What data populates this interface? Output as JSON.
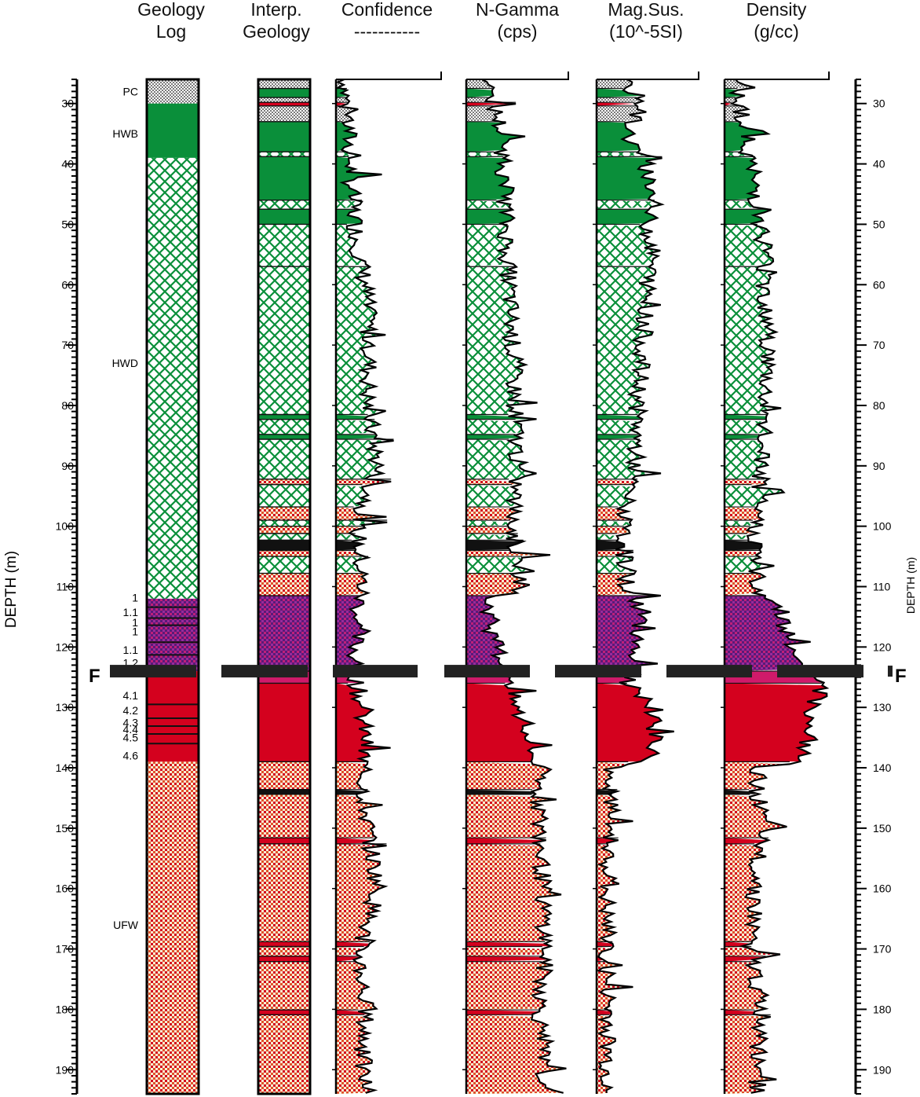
{
  "colors": {
    "green": "#0a8f3a",
    "red": "#d4011e",
    "magenta": "#d01a6a",
    "purple": "#7a1f86",
    "black": "#111111",
    "gray_dither": "#bdbdbd",
    "cream": "#f3e9c9"
  },
  "chart_data": {
    "type": "well-log",
    "ylabel": "DEPTH (m)",
    "ylim": [
      26,
      194
    ],
    "yticks": [
      30,
      40,
      50,
      60,
      70,
      80,
      90,
      100,
      110,
      120,
      130,
      140,
      150,
      160,
      170,
      180,
      190
    ],
    "fault_marker": {
      "label": "F",
      "depth": 124
    },
    "columns": [
      {
        "key": "geology_log",
        "title_line1": "Geology",
        "title_line2": "Log"
      },
      {
        "key": "interp_geology",
        "title_line1": "Interp.",
        "title_line2": "Geology"
      },
      {
        "key": "confidence",
        "title_line1": "Confidence",
        "title_line2": "-----------"
      },
      {
        "key": "n_gamma",
        "title_line1": "N-Gamma",
        "title_line2": "(cps)"
      },
      {
        "key": "mag_sus",
        "title_line1": "Mag.Sus.",
        "title_line2": "(10^-5SI)"
      },
      {
        "key": "density",
        "title_line1": "Density",
        "title_line2": "(g/cc)"
      }
    ],
    "geology_log": [
      {
        "top": 26,
        "bot": 30,
        "unit": "PC"
      },
      {
        "top": 30,
        "bot": 39,
        "unit": "HWB"
      },
      {
        "top": 39,
        "bot": 112,
        "unit": "HWD"
      },
      {
        "top": 112,
        "bot": 124,
        "unit": "1"
      },
      {
        "top": 124,
        "bot": 139,
        "unit": "4.1"
      },
      {
        "top": 139,
        "bot": 194,
        "unit": "UFW"
      }
    ],
    "unit_labels": [
      {
        "depth": 28,
        "text": "PC"
      },
      {
        "depth": 35,
        "text": "HWB"
      },
      {
        "depth": 73,
        "text": "HWD"
      },
      {
        "depth": 111.8,
        "text": "1"
      },
      {
        "depth": 114.2,
        "text": "1.1"
      },
      {
        "depth": 115.9,
        "text": "1"
      },
      {
        "depth": 117.4,
        "text": "1"
      },
      {
        "depth": 120.5,
        "text": "1.1"
      },
      {
        "depth": 122.6,
        "text": "1.2"
      },
      {
        "depth": 128,
        "text": "4.1"
      },
      {
        "depth": 130.5,
        "text": "4.2"
      },
      {
        "depth": 132.5,
        "text": "4.3"
      },
      {
        "depth": 133.6,
        "text": "4.4"
      },
      {
        "depth": 135,
        "text": "4.5"
      },
      {
        "depth": 138,
        "text": "4.6"
      },
      {
        "depth": 166,
        "text": "UFW"
      }
    ],
    "interp_geology": [
      {
        "top": 26,
        "bot": 27.5,
        "unit": "PC"
      },
      {
        "top": 27.5,
        "bot": 29,
        "unit": "HWB"
      },
      {
        "top": 29,
        "bot": 29.8,
        "unit": "PC"
      },
      {
        "top": 29.8,
        "bot": 30.4,
        "unit": "RED"
      },
      {
        "top": 30.4,
        "bot": 33,
        "unit": "PC"
      },
      {
        "top": 33,
        "bot": 38,
        "unit": "HWB"
      },
      {
        "top": 38,
        "bot": 38.8,
        "unit": "HWD"
      },
      {
        "top": 38.8,
        "bot": 46,
        "unit": "HWB"
      },
      {
        "top": 46,
        "bot": 47.5,
        "unit": "HWD"
      },
      {
        "top": 47.5,
        "bot": 50,
        "unit": "HWB"
      },
      {
        "top": 50,
        "bot": 57,
        "unit": "HWD"
      },
      {
        "top": 57,
        "bot": 81.5,
        "unit": "HWD"
      },
      {
        "top": 81.5,
        "bot": 82.3,
        "unit": "HWB"
      },
      {
        "top": 82.3,
        "bot": 84.8,
        "unit": "HWD"
      },
      {
        "top": 84.8,
        "bot": 85.6,
        "unit": "HWB"
      },
      {
        "top": 85.6,
        "bot": 92.2,
        "unit": "HWD"
      },
      {
        "top": 92.2,
        "bot": 93.1,
        "unit": "UFW"
      },
      {
        "top": 93.1,
        "bot": 96.8,
        "unit": "HWD"
      },
      {
        "top": 96.8,
        "bot": 99,
        "unit": "UFW"
      },
      {
        "top": 99,
        "bot": 100,
        "unit": "HWD"
      },
      {
        "top": 100,
        "bot": 101.2,
        "unit": "UFW"
      },
      {
        "top": 101.2,
        "bot": 102.3,
        "unit": "HWD"
      },
      {
        "top": 102.3,
        "bot": 104,
        "unit": "BLACK"
      },
      {
        "top": 104,
        "bot": 105,
        "unit": "UFW"
      },
      {
        "top": 105,
        "bot": 107.8,
        "unit": "HWD"
      },
      {
        "top": 107.8,
        "bot": 111.5,
        "unit": "UFW"
      },
      {
        "top": 111.5,
        "bot": 124,
        "unit": "PURPLE"
      },
      {
        "top": 124,
        "bot": 126,
        "unit": "MAG"
      },
      {
        "top": 126,
        "bot": 139,
        "unit": "RED"
      },
      {
        "top": 139,
        "bot": 143.6,
        "unit": "UFW"
      },
      {
        "top": 143.6,
        "bot": 144.4,
        "unit": "BLACK"
      },
      {
        "top": 144.4,
        "bot": 151.6,
        "unit": "UFW"
      },
      {
        "top": 151.6,
        "bot": 152.6,
        "unit": "RED"
      },
      {
        "top": 152.6,
        "bot": 168.8,
        "unit": "UFW"
      },
      {
        "top": 168.8,
        "bot": 169.6,
        "unit": "RED"
      },
      {
        "top": 169.6,
        "bot": 171.2,
        "unit": "UFW"
      },
      {
        "top": 171.2,
        "bot": 172.1,
        "unit": "RED"
      },
      {
        "top": 172.1,
        "bot": 180.1,
        "unit": "UFW"
      },
      {
        "top": 180.1,
        "bot": 180.9,
        "unit": "RED"
      },
      {
        "top": 180.9,
        "bot": 194,
        "unit": "UFW"
      }
    ],
    "curve_base": {
      "confidence": [
        [
          26,
          8
        ],
        [
          35,
          12
        ],
        [
          45,
          15
        ],
        [
          55,
          22
        ],
        [
          60,
          28
        ],
        [
          70,
          32
        ],
        [
          80,
          30
        ],
        [
          90,
          40
        ],
        [
          100,
          20
        ],
        [
          110,
          25
        ],
        [
          115,
          20
        ],
        [
          122,
          18
        ],
        [
          126,
          20
        ],
        [
          135,
          28
        ],
        [
          140,
          25
        ],
        [
          150,
          30
        ],
        [
          160,
          40
        ],
        [
          170,
          22
        ],
        [
          180,
          28
        ],
        [
          190,
          25
        ],
        [
          194,
          30
        ]
      ],
      "n_gamma": [
        [
          26,
          20
        ],
        [
          35,
          35
        ],
        [
          45,
          38
        ],
        [
          55,
          40
        ],
        [
          60,
          42
        ],
        [
          70,
          45
        ],
        [
          80,
          48
        ],
        [
          90,
          50
        ],
        [
          100,
          45
        ],
        [
          110,
          55
        ],
        [
          112,
          22
        ],
        [
          118,
          25
        ],
        [
          124,
          40
        ],
        [
          126,
          40
        ],
        [
          135,
          60
        ],
        [
          140,
          70
        ],
        [
          150,
          72
        ],
        [
          160,
          75
        ],
        [
          170,
          78
        ],
        [
          180,
          72
        ],
        [
          190,
          75
        ],
        [
          194,
          78
        ]
      ],
      "mag_sus": [
        [
          26,
          25
        ],
        [
          30,
          45
        ],
        [
          35,
          30
        ],
        [
          40,
          48
        ],
        [
          45,
          55
        ],
        [
          50,
          50
        ],
        [
          55,
          55
        ],
        [
          60,
          50
        ],
        [
          70,
          45
        ],
        [
          80,
          40
        ],
        [
          90,
          38
        ],
        [
          95,
          30
        ],
        [
          100,
          25
        ],
        [
          110,
          30
        ],
        [
          114,
          45
        ],
        [
          120,
          40
        ],
        [
          124,
          35
        ],
        [
          126,
          30
        ],
        [
          130,
          50
        ],
        [
          135,
          60
        ],
        [
          139,
          50
        ],
        [
          140,
          12
        ],
        [
          150,
          14
        ],
        [
          160,
          10
        ],
        [
          170,
          8
        ],
        [
          180,
          12
        ],
        [
          190,
          10
        ],
        [
          194,
          12
        ]
      ],
      "density": [
        [
          26,
          12
        ],
        [
          35,
          20
        ],
        [
          45,
          30
        ],
        [
          50,
          35
        ],
        [
          55,
          40
        ],
        [
          60,
          38
        ],
        [
          70,
          42
        ],
        [
          80,
          38
        ],
        [
          90,
          35
        ],
        [
          100,
          30
        ],
        [
          110,
          30
        ],
        [
          114,
          55
        ],
        [
          118,
          60
        ],
        [
          122,
          70
        ],
        [
          124,
          90
        ],
        [
          126,
          95
        ],
        [
          130,
          85
        ],
        [
          135,
          80
        ],
        [
          139,
          70
        ],
        [
          140,
          30
        ],
        [
          150,
          35
        ],
        [
          160,
          30
        ],
        [
          170,
          25
        ],
        [
          180,
          35
        ],
        [
          190,
          30
        ],
        [
          194,
          32
        ]
      ]
    }
  }
}
